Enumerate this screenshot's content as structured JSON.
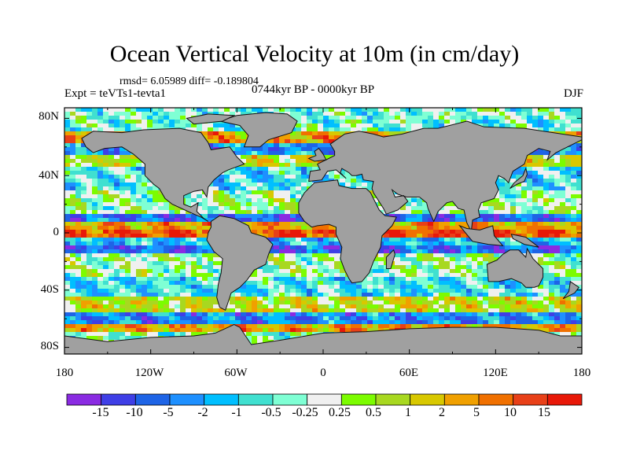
{
  "title": "Ocean Vertical Velocity at 10m (in cm/day)",
  "stats": "rmsd= 6.05989 diff= -0.189804",
  "subtitle": "0744kyr BP - 0000kyr BP",
  "experiment": "Expt = teVTs1-tevta1",
  "season": "DJF",
  "y_axis_labels": [
    "80N",
    "40N",
    "0",
    "40S",
    "80S"
  ],
  "x_axis_labels": [
    "180",
    "120W",
    "60W",
    "0",
    "60E",
    "120E",
    "180"
  ],
  "colorbar": {
    "labels": [
      "-15",
      "-10",
      "-5",
      "-2",
      "-1",
      "-0.5",
      "-0.25",
      "0.25",
      "0.5",
      "1",
      "2",
      "5",
      "10",
      "15"
    ],
    "colors": [
      "#8a2be2",
      "#3f3fe6",
      "#1e64e6",
      "#1e90ff",
      "#00bfff",
      "#40e0d0",
      "#7fffd4",
      "#f0f0f0",
      "#7cfc00",
      "#a8d820",
      "#d8c800",
      "#f0a000",
      "#f07000",
      "#e84018",
      "#e81808"
    ]
  },
  "land_color": "#a0a0a0"
}
